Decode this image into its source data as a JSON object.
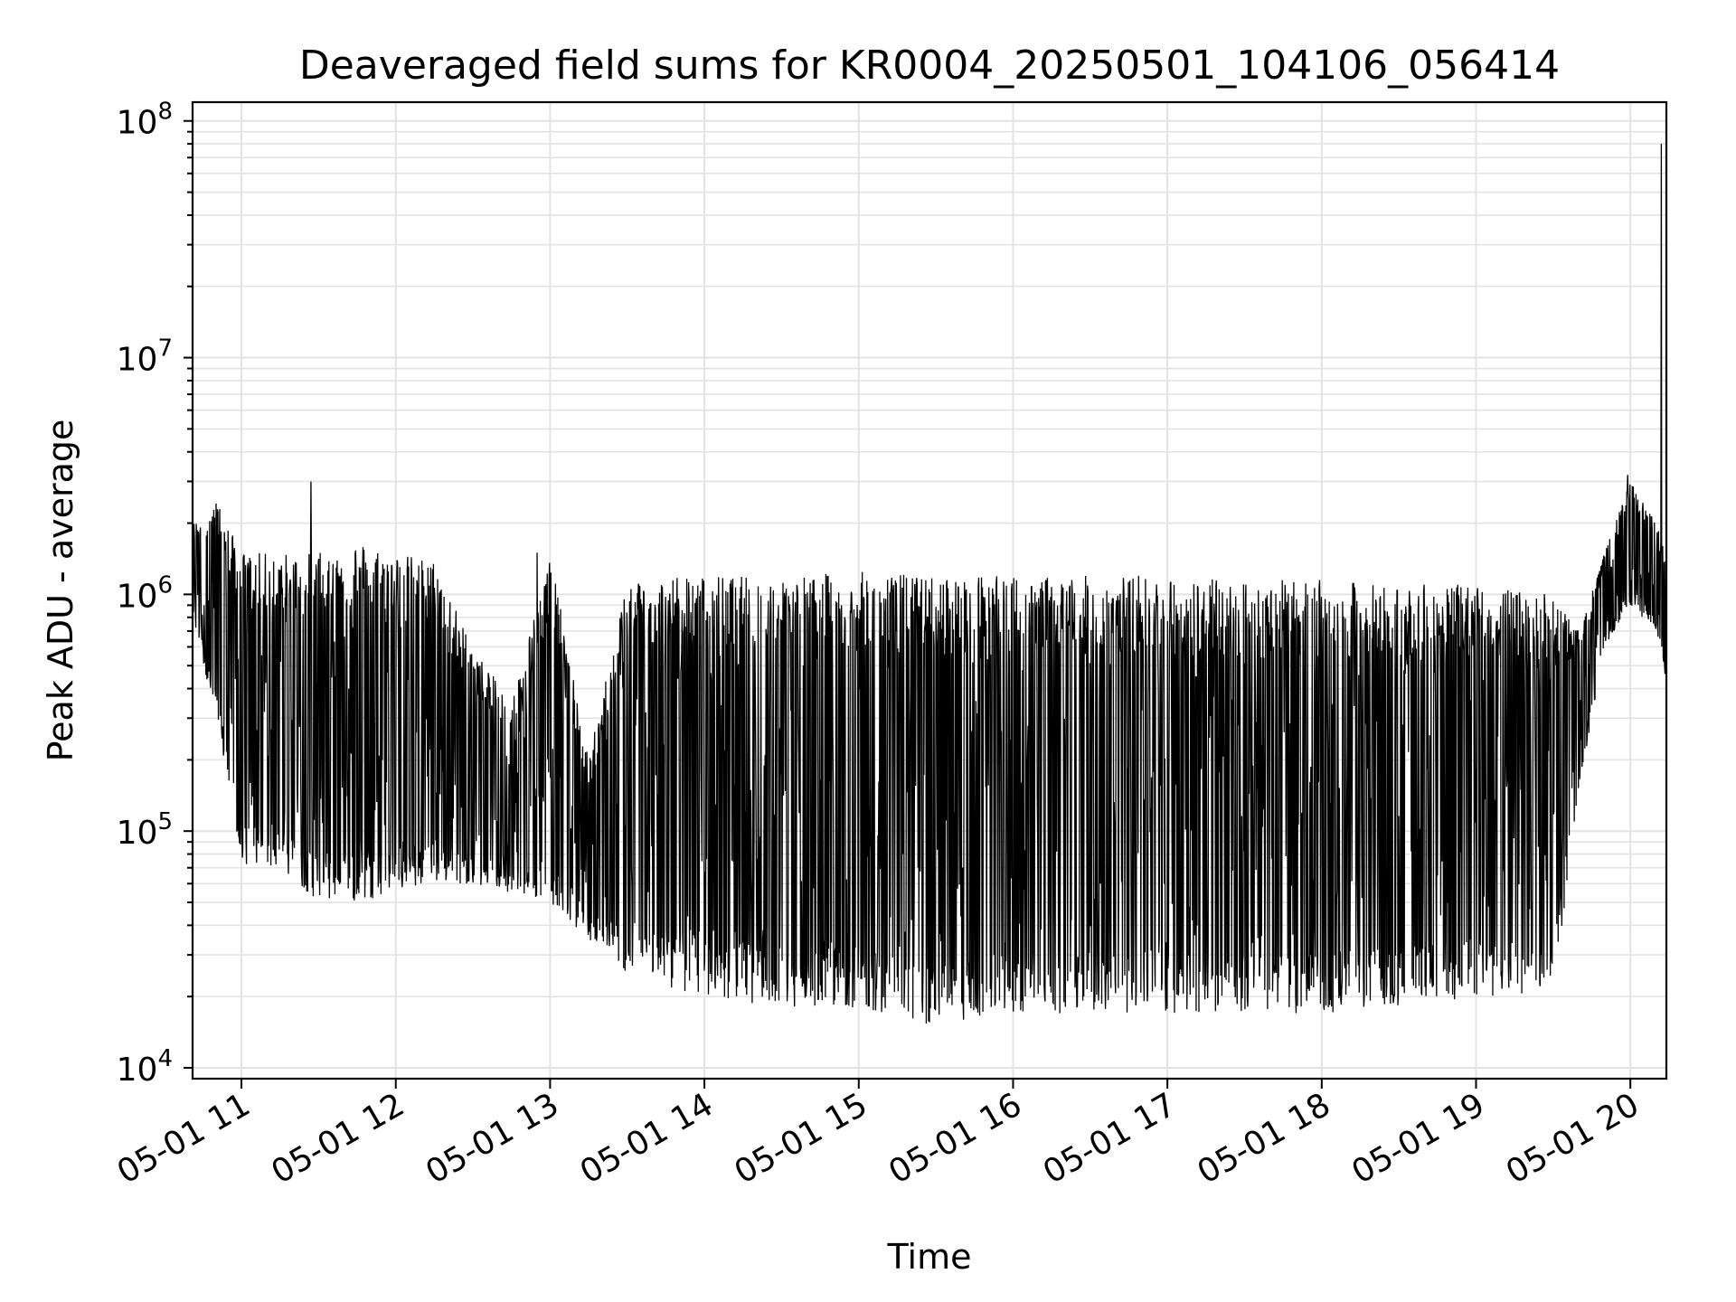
{
  "chart_data": {
    "type": "line",
    "title": "Deaveraged field sums for KR0004_20250501_104106_056414",
    "xlabel": "Time",
    "ylabel": "Peak ADU - average",
    "yscale": "log",
    "ylim": [
      9000,
      120000000
    ],
    "xlim": [
      "05-01 10:41",
      "05-01 20:14"
    ],
    "grid": true,
    "x_tick_labels": [
      "05-01 11",
      "05-01 12",
      "05-01 13",
      "05-01 14",
      "05-01 15",
      "05-01 16",
      "05-01 17",
      "05-01 18",
      "05-01 19",
      "05-01 20"
    ],
    "y_ticks": [
      {
        "base": "10",
        "exp": "4",
        "value": 10000
      },
      {
        "base": "10",
        "exp": "5",
        "value": 100000
      },
      {
        "base": "10",
        "exp": "6",
        "value": 1000000
      },
      {
        "base": "10",
        "exp": "7",
        "value": 10000000
      },
      {
        "base": "10",
        "exp": "8",
        "value": 100000000
      }
    ],
    "series": [
      {
        "color": "#000000",
        "envelope": [
          {
            "t": "05-01 10:41",
            "high": 2000000,
            "low": 800000
          },
          {
            "t": "05-01 10:50",
            "high": 2500000,
            "low": 300000
          },
          {
            "t": "05-01 11:00",
            "high": 1500000,
            "low": 70000
          },
          {
            "t": "05-01 11:15",
            "high": 1500000,
            "low": 70000
          },
          {
            "t": "05-01 11:30",
            "high": 1500000,
            "low": 50000
          },
          {
            "t": "05-01 11:45",
            "high": 1700000,
            "low": 50000
          },
          {
            "t": "05-01 12:00",
            "high": 1500000,
            "low": 55000
          },
          {
            "t": "05-01 12:15",
            "high": 1400000,
            "low": 60000
          },
          {
            "t": "05-01 12:30",
            "high": 600000,
            "low": 60000
          },
          {
            "t": "05-01 12:45",
            "high": 350000,
            "low": 55000
          },
          {
            "t": "05-01 13:00",
            "high": 1500000,
            "low": 50000
          },
          {
            "t": "05-01 13:15",
            "high": 200000,
            "low": 35000
          },
          {
            "t": "05-01 13:30",
            "high": 1200000,
            "low": 25000
          },
          {
            "t": "05-01 13:45",
            "high": 1200000,
            "low": 22000
          },
          {
            "t": "05-01 14:00",
            "high": 1200000,
            "low": 20000
          },
          {
            "t": "05-01 14:30",
            "high": 1200000,
            "low": 18000
          },
          {
            "t": "05-01 15:00",
            "high": 1250000,
            "low": 18000
          },
          {
            "t": "05-01 15:30",
            "high": 1200000,
            "low": 15000
          },
          {
            "t": "05-01 16:00",
            "high": 1200000,
            "low": 17000
          },
          {
            "t": "05-01 16:30",
            "high": 1200000,
            "low": 17000
          },
          {
            "t": "05-01 17:00",
            "high": 1200000,
            "low": 17000
          },
          {
            "t": "05-01 17:30",
            "high": 1150000,
            "low": 17000
          },
          {
            "t": "05-01 18:00",
            "high": 1150000,
            "low": 17000
          },
          {
            "t": "05-01 18:30",
            "high": 1100000,
            "low": 18000
          },
          {
            "t": "05-01 19:00",
            "high": 1100000,
            "low": 20000
          },
          {
            "t": "05-01 19:30",
            "high": 1000000,
            "low": 20000
          },
          {
            "t": "05-01 19:40",
            "high": 700000,
            "low": 150000
          },
          {
            "t": "05-01 19:50",
            "high": 1500000,
            "low": 600000
          },
          {
            "t": "05-01 20:00",
            "high": 3000000,
            "low": 900000
          },
          {
            "t": "05-01 20:10",
            "high": 2000000,
            "low": 700000
          },
          {
            "t": "05-01 20:14",
            "high": 1500000,
            "low": 400000
          }
        ],
        "spikes": [
          {
            "t": "05-01 11:27",
            "value": 3000000
          },
          {
            "t": "05-01 12:55",
            "value": 1500000
          },
          {
            "t": "05-01 19:59",
            "value": 3200000
          },
          {
            "t": "05-01 20:12",
            "value": 80000000
          }
        ]
      }
    ]
  }
}
